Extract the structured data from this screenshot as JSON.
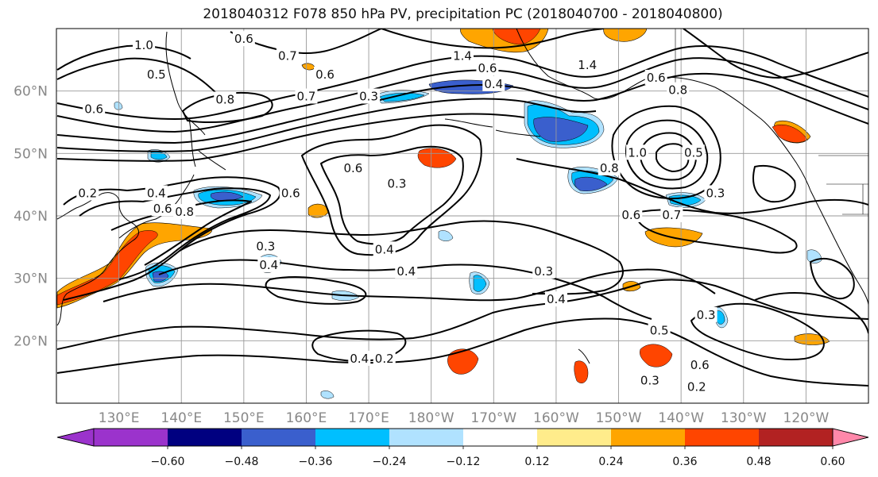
{
  "title": "2018040312 F078 850 hPa PV, precipitation PC (2018040700 - 2018040800)",
  "lat_labels": [
    "60°N",
    "50°N",
    "40°N",
    "30°N",
    "20°N"
  ],
  "lon_labels": [
    "130°E",
    "140°E",
    "150°E",
    "160°E",
    "170°E",
    "180°W",
    "170°W",
    "160°W",
    "150°W",
    "140°W",
    "130°W",
    "120°W"
  ],
  "colorbar": {
    "colors": [
      "#9b33cc",
      "#000080",
      "#3a5fcd",
      "#00bfff",
      "#b0e2ff",
      "#ffffff",
      "#ffec8b",
      "#ffa500",
      "#ff4500",
      "#b22222",
      "#ff88aa"
    ],
    "tick_labels": [
      "−0.60",
      "−0.48",
      "−0.36",
      "−0.24",
      "−0.12",
      "0.12",
      "0.24",
      "0.36",
      "0.48",
      "0.60"
    ]
  },
  "contour_labels": [
    {
      "text": "1.0",
      "lon": 134.0,
      "lat": 67.2
    },
    {
      "text": "0.6",
      "lon": 150.0,
      "lat": 68.2
    },
    {
      "text": "0.5",
      "lon": 136.0,
      "lat": 62.5
    },
    {
      "text": "0.8",
      "lon": 147.0,
      "lat": 58.5
    },
    {
      "text": "0.7",
      "lon": 157.0,
      "lat": 65.5
    },
    {
      "text": "0.7",
      "lon": 160.0,
      "lat": 59.0
    },
    {
      "text": "0.6",
      "lon": 163.0,
      "lat": 62.5
    },
    {
      "text": "0.3",
      "lon": 170.0,
      "lat": 59.0
    },
    {
      "text": "1.4",
      "lon": 185.0,
      "lat": 65.5
    },
    {
      "text": "0.6",
      "lon": 189.0,
      "lat": 63.5
    },
    {
      "text": "0.4",
      "lon": 190.0,
      "lat": 61.0
    },
    {
      "text": "1.4",
      "lon": 205.0,
      "lat": 64.0
    },
    {
      "text": "0.6",
      "lon": 216.0,
      "lat": 62.0
    },
    {
      "text": "0.8",
      "lon": 219.5,
      "lat": 60.0
    },
    {
      "text": "0.6",
      "lon": 126.0,
      "lat": 57.0
    },
    {
      "text": "0.2",
      "lon": 125.0,
      "lat": 43.5
    },
    {
      "text": "0.4",
      "lon": 136.0,
      "lat": 43.5
    },
    {
      "text": "0.6",
      "lon": 137.0,
      "lat": 41.0
    },
    {
      "text": "0.8",
      "lon": 140.5,
      "lat": 40.5
    },
    {
      "text": "0.6",
      "lon": 157.5,
      "lat": 43.5
    },
    {
      "text": "0.6",
      "lon": 167.5,
      "lat": 47.5
    },
    {
      "text": "0.3",
      "lon": 174.5,
      "lat": 45.0
    },
    {
      "text": "0.8",
      "lon": 208.5,
      "lat": 47.5
    },
    {
      "text": "1.0",
      "lon": 213.0,
      "lat": 50.0
    },
    {
      "text": "0.5",
      "lon": 222.0,
      "lat": 50.0
    },
    {
      "text": "0.3",
      "lon": 225.5,
      "lat": 43.5
    },
    {
      "text": "0.6",
      "lon": 212.0,
      "lat": 40.0
    },
    {
      "text": "0.7",
      "lon": 218.5,
      "lat": 40.0
    },
    {
      "text": "0.4",
      "lon": 154.0,
      "lat": 32.0
    },
    {
      "text": "0.3",
      "lon": 153.5,
      "lat": 35.0
    },
    {
      "text": "0.4",
      "lon": 172.5,
      "lat": 34.5
    },
    {
      "text": "0.4",
      "lon": 176.0,
      "lat": 31.0
    },
    {
      "text": "0.3",
      "lon": 198.0,
      "lat": 31.0
    },
    {
      "text": "0.4",
      "lon": 200.0,
      "lat": 26.5
    },
    {
      "text": "0.5",
      "lon": 216.5,
      "lat": 21.5
    },
    {
      "text": "0.3",
      "lon": 224.0,
      "lat": 24.0
    },
    {
      "text": "0.4",
      "lon": 168.5,
      "lat": 17.0
    },
    {
      "text": "0.2",
      "lon": 172.5,
      "lat": 17.0
    },
    {
      "text": "0.6",
      "lon": 223.0,
      "lat": 16.0
    },
    {
      "text": "0.3",
      "lon": 215.0,
      "lat": 13.5
    },
    {
      "text": "0.2",
      "lon": 222.5,
      "lat": 12.5
    }
  ]
}
